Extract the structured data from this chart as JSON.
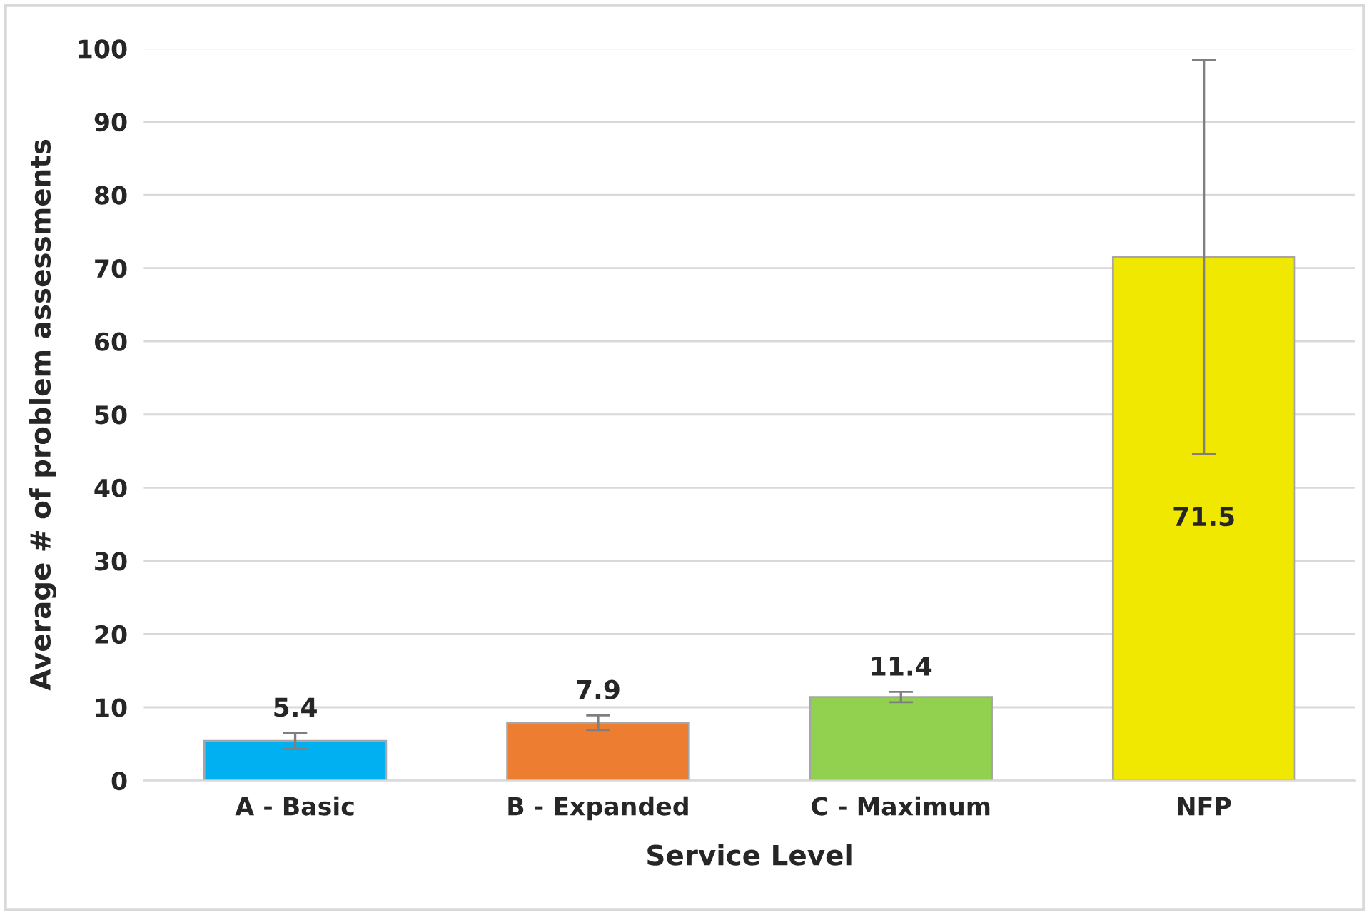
{
  "chart_data": {
    "type": "bar",
    "xlabel": "Service Level",
    "ylabel": "Average # of problem assessments",
    "categories": [
      "A - Basic",
      "B - Expanded",
      "C - Maximum",
      "NFP"
    ],
    "values": [
      5.4,
      7.9,
      11.4,
      71.5
    ],
    "errors": [
      1.1,
      1.0,
      0.7,
      26.9
    ],
    "colors": [
      "#00b0f0",
      "#ed7d31",
      "#92d050",
      "#f0e800"
    ],
    "ylim": [
      0,
      100
    ],
    "yticks": [
      0,
      10,
      20,
      30,
      40,
      50,
      60,
      70,
      80,
      90,
      100
    ],
    "grid": "y",
    "data_labels": true
  }
}
